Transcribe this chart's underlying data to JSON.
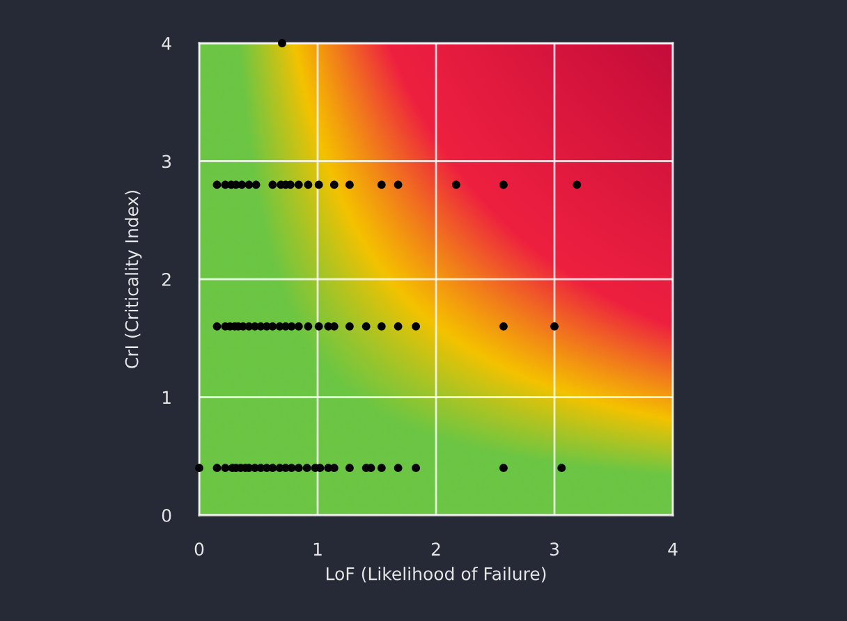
{
  "chart_data": {
    "type": "scatter",
    "xlabel": "LoF (Likelihood of Failure)",
    "ylabel": "CrI (Criticality Index)",
    "xlim": [
      0,
      4
    ],
    "ylim": [
      0,
      4
    ],
    "xticks": [
      0,
      1,
      2,
      3,
      4
    ],
    "yticks": [
      0,
      1,
      2,
      3,
      4
    ],
    "grid": true,
    "marker": "circle",
    "series": [
      {
        "color": "#000000",
        "x": [
          0.7
        ],
        "values": [
          4
        ]
      },
      {
        "color": "#000000",
        "x": [
          0.15,
          0.22,
          0.27,
          0.31,
          0.36,
          0.42,
          0.48,
          0.62,
          0.69,
          0.73,
          0.77,
          0.84,
          0.92,
          1.01,
          1.14,
          1.27,
          1.54,
          1.68,
          2.17,
          2.57,
          3.19
        ],
        "values": [
          2.8,
          2.8,
          2.8,
          2.8,
          2.8,
          2.8,
          2.8,
          2.8,
          2.8,
          2.8,
          2.8,
          2.8,
          2.8,
          2.8,
          2.8,
          2.8,
          2.8,
          2.8,
          2.8,
          2.8,
          2.8
        ]
      },
      {
        "color": "#000000",
        "x": [
          0.15,
          0.22,
          0.26,
          0.3,
          0.33,
          0.37,
          0.42,
          0.47,
          0.52,
          0.57,
          0.62,
          0.68,
          0.73,
          0.78,
          0.84,
          0.92,
          1.01,
          1.09,
          1.14,
          1.27,
          1.41,
          1.54,
          1.68,
          1.83,
          2.57,
          3.0
        ],
        "values": [
          1.6,
          1.6,
          1.6,
          1.6,
          1.6,
          1.6,
          1.6,
          1.6,
          1.6,
          1.6,
          1.6,
          1.6,
          1.6,
          1.6,
          1.6,
          1.6,
          1.6,
          1.6,
          1.6,
          1.6,
          1.6,
          1.6,
          1.6,
          1.6,
          1.6,
          1.6
        ]
      },
      {
        "color": "#000000",
        "x": [
          0.0,
          0.15,
          0.22,
          0.26,
          0.28,
          0.31,
          0.35,
          0.39,
          0.42,
          0.47,
          0.52,
          0.57,
          0.62,
          0.68,
          0.73,
          0.78,
          0.84,
          0.91,
          0.98,
          1.02,
          1.09,
          1.14,
          1.27,
          1.41,
          1.45,
          1.54,
          1.68,
          1.83,
          2.57,
          3.06
        ],
        "values": [
          0.4,
          0.4,
          0.4,
          null,
          0.4,
          0.4,
          0.4,
          0.4,
          0.4,
          0.4,
          0.4,
          0.4,
          0.4,
          0.4,
          0.4,
          0.4,
          0.4,
          0.4,
          0.4,
          0.4,
          0.4,
          0.4,
          0.4,
          0.4,
          0.4,
          0.4,
          0.4,
          0.4,
          0.4,
          0.4
        ]
      }
    ]
  }
}
